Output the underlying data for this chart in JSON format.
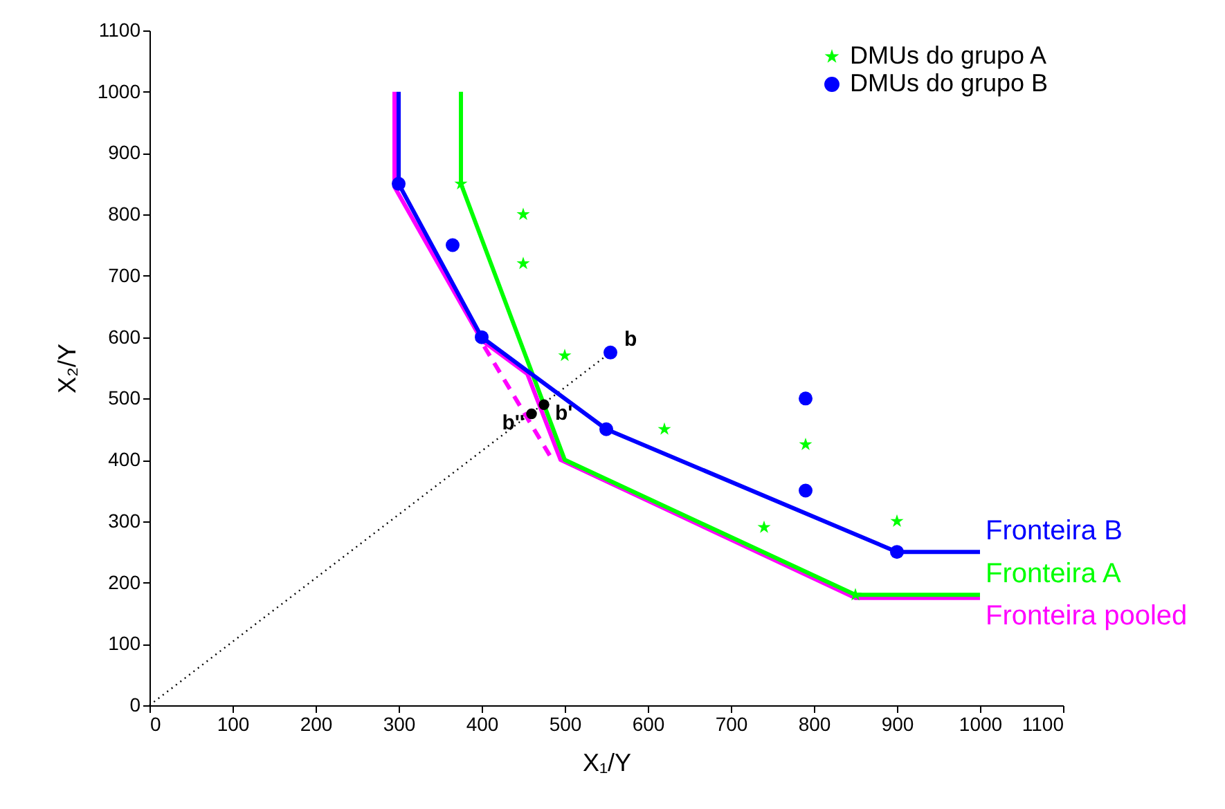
{
  "chart_data": {
    "type": "line",
    "xlabel": "X₁/Y",
    "ylabel": "X₂/Y",
    "xlim": [
      0,
      1100
    ],
    "ylim": [
      0,
      1100
    ],
    "xticks": [
      0,
      100,
      200,
      300,
      400,
      500,
      600,
      700,
      800,
      900,
      1000,
      1100
    ],
    "yticks": [
      0,
      100,
      200,
      300,
      400,
      500,
      600,
      700,
      800,
      900,
      1000,
      1100
    ],
    "grid": false,
    "legend": "top right",
    "series": [
      {
        "type": "line",
        "line_style": "dotted",
        "color": "#000000",
        "x": [
          0,
          555
        ],
        "values": [
          0,
          575
        ]
      },
      {
        "type": "line",
        "line_style": "dashed",
        "color": "#ff00ff",
        "x": [
          403,
          483
        ],
        "values": [
          585,
          405
        ]
      },
      {
        "type": "line",
        "line_style": "solid",
        "name": "Fronteira pooled",
        "color": "#ff00ff",
        "x": [
          295,
          295,
          400,
          455,
          495,
          850,
          1000
        ],
        "values": [
          1000,
          845,
          595,
          540,
          400,
          175,
          175
        ]
      },
      {
        "type": "line",
        "line_style": "solid",
        "name": "Fronteira A",
        "color": "#00ff00",
        "x": [
          375,
          375,
          500,
          850,
          1000
        ],
        "values": [
          1000,
          850,
          400,
          180,
          180
        ]
      },
      {
        "type": "line",
        "line_style": "solid",
        "name": "Fronteira B",
        "color": "#0000ff",
        "x": [
          300,
          300,
          400,
          550,
          900,
          1000
        ],
        "values": [
          1000,
          850,
          600,
          450,
          250,
          250
        ]
      },
      {
        "type": "scatter",
        "marker": "star",
        "name": "DMUs do grupo A",
        "color": "#00ff00",
        "x": [
          375,
          450,
          450,
          500,
          620,
          790,
          740,
          900,
          850
        ],
        "values": [
          850,
          800,
          720,
          570,
          450,
          425,
          290,
          300,
          180
        ]
      },
      {
        "type": "scatter",
        "marker": "circle",
        "name": "DMUs do grupo B",
        "color": "#0000ff",
        "x": [
          300,
          365,
          400,
          555,
          550,
          790,
          790,
          900
        ],
        "values": [
          850,
          750,
          600,
          575,
          450,
          500,
          350,
          250
        ]
      },
      {
        "type": "scatter",
        "marker": "circle",
        "color": "#000000",
        "x": [
          475,
          460
        ],
        "values": [
          490,
          475
        ]
      }
    ],
    "annotations": [
      {
        "text": "b",
        "x": 555,
        "y": 575
      },
      {
        "text": "b'",
        "x": 475,
        "y": 490
      },
      {
        "text": "b''",
        "x": 460,
        "y": 475
      }
    ]
  }
}
